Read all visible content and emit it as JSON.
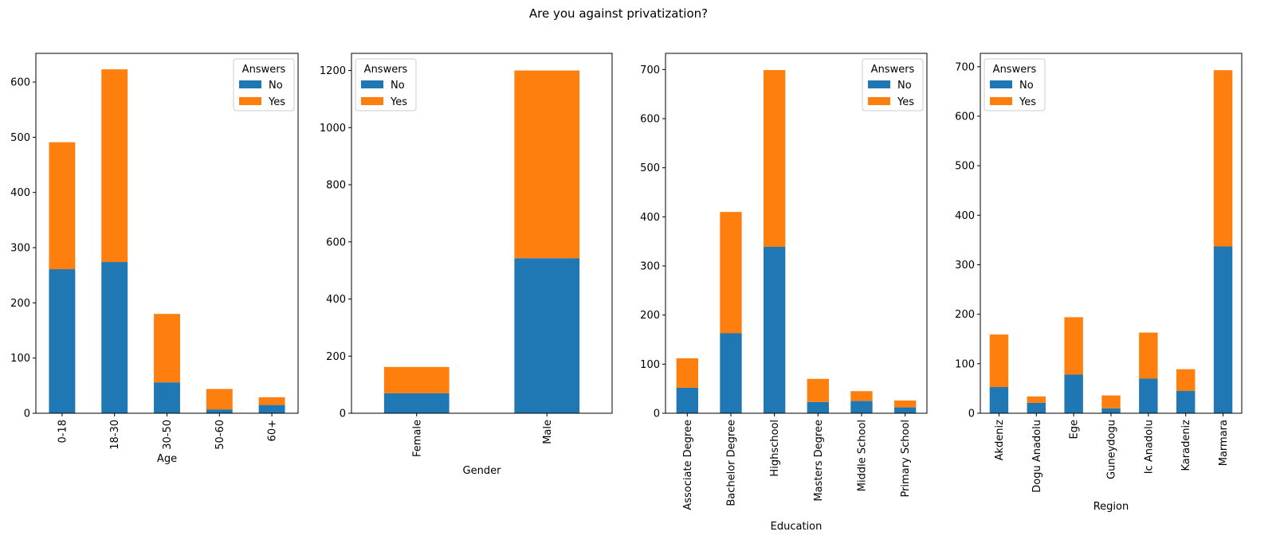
{
  "figure": {
    "title": "Are you against privatization?"
  },
  "colors": {
    "No": "#1f77b4",
    "Yes": "#ff7f0e"
  },
  "chart_data": [
    {
      "type": "bar",
      "stacked": true,
      "xlabel": "Age",
      "categories": [
        "0-18",
        "18-30",
        "30-50",
        "50-60",
        "60+"
      ],
      "series": [
        {
          "name": "No",
          "values": [
            261,
            274,
            56,
            7,
            15
          ]
        },
        {
          "name": "Yes",
          "values": [
            230,
            349,
            124,
            37,
            14
          ]
        }
      ],
      "ylim": [
        0,
        652
      ],
      "yticks": [
        0,
        100,
        200,
        300,
        400,
        500,
        600
      ],
      "legend": {
        "title": "Answers",
        "position": "top-right"
      }
    },
    {
      "type": "bar",
      "stacked": true,
      "xlabel": "Gender",
      "categories": [
        "Female",
        "Male"
      ],
      "series": [
        {
          "name": "No",
          "values": [
            70,
            543
          ]
        },
        {
          "name": "Yes",
          "values": [
            92,
            657
          ]
        }
      ],
      "ylim": [
        0,
        1260
      ],
      "yticks": [
        0,
        200,
        400,
        600,
        800,
        1000,
        1200
      ],
      "legend": {
        "title": "Answers",
        "position": "top-left"
      }
    },
    {
      "type": "bar",
      "stacked": true,
      "xlabel": "Education",
      "categories": [
        "Associate Degree",
        "Bachelor Degree",
        "Highschool",
        "Masters Degree",
        "Middle School",
        "Primary School"
      ],
      "series": [
        {
          "name": "No",
          "values": [
            52,
            163,
            339,
            23,
            25,
            12
          ]
        },
        {
          "name": "Yes",
          "values": [
            60,
            247,
            360,
            47,
            20,
            14
          ]
        }
      ],
      "ylim": [
        0,
        733
      ],
      "yticks": [
        0,
        100,
        200,
        300,
        400,
        500,
        600,
        700
      ],
      "legend": {
        "title": "Answers",
        "position": "top-right"
      }
    },
    {
      "type": "bar",
      "stacked": true,
      "xlabel": "Region",
      "categories": [
        "Akdeniz",
        "Dogu Anadolu",
        "Ege",
        "Guneydogu",
        "Ic Anadolu",
        "Karadeniz",
        "Marmara"
      ],
      "series": [
        {
          "name": "No",
          "values": [
            53,
            21,
            78,
            10,
            70,
            45,
            337
          ]
        },
        {
          "name": "Yes",
          "values": [
            106,
            13,
            116,
            26,
            93,
            44,
            356
          ]
        }
      ],
      "ylim": [
        0,
        727
      ],
      "yticks": [
        0,
        100,
        200,
        300,
        400,
        500,
        600,
        700
      ],
      "legend": {
        "title": "Answers",
        "position": "top-left"
      }
    }
  ]
}
